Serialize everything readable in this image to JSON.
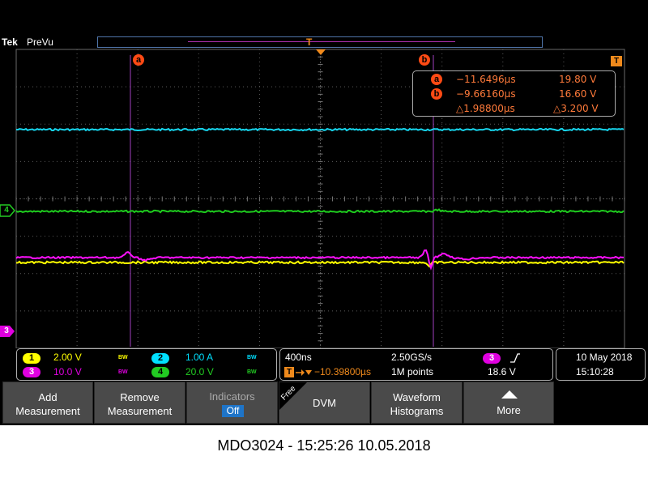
{
  "header": {
    "brand": "Tek",
    "acq_state": "PreVu",
    "record_trigger_marker": "T"
  },
  "cursors": {
    "a": {
      "label": "a",
      "time": "−11.6496µs",
      "value": "19.80 V"
    },
    "b": {
      "label": "b",
      "time": "−9.66160µs",
      "value": "16.60 V"
    },
    "delta_time": "△1.98800µs",
    "delta_value": "△3.200 V"
  },
  "trigger_badge": "T",
  "channel_markers": {
    "ch4": "4",
    "ch3": "3"
  },
  "channels": [
    {
      "num": "1",
      "scale": "2.00 V",
      "bw": "BW",
      "color": "#ffff00"
    },
    {
      "num": "2",
      "scale": "1.00 A",
      "bw": "BW",
      "color": "#00e0ff"
    },
    {
      "num": "3",
      "scale": "10.0 V",
      "bw": "BW",
      "color": "#e000e0"
    },
    {
      "num": "4",
      "scale": "20.0 V",
      "bw": "BW",
      "color": "#22cc22"
    }
  ],
  "timebase": {
    "horizontal_scale": "400ns",
    "sample_rate": "2.50GS/s",
    "trigger_position": "−10.39800µs",
    "record_length": "1M points"
  },
  "trigger": {
    "source": "3",
    "slope_icon": "rising-edge",
    "level": "18.6 V"
  },
  "datetime": {
    "date": "10 May 2018",
    "time": "15:10:28"
  },
  "menu": {
    "add_measurement": "Add\nMeasurement",
    "remove_measurement": "Remove\nMeasurement",
    "indicators_label": "Indicators",
    "indicators_value": "Off",
    "free_tag": "Free",
    "dvm": "DVM",
    "waveform_histograms": "Waveform\nHistograms",
    "more": "More"
  },
  "caption": "MDO3024 - 15:25:26    10.05.2018",
  "colors": {
    "trigger_orange": "#f08a1c",
    "cursor_orange": "#ff4a14",
    "cursor_line": "#a040c0",
    "grid": "#6a6a6a"
  }
}
